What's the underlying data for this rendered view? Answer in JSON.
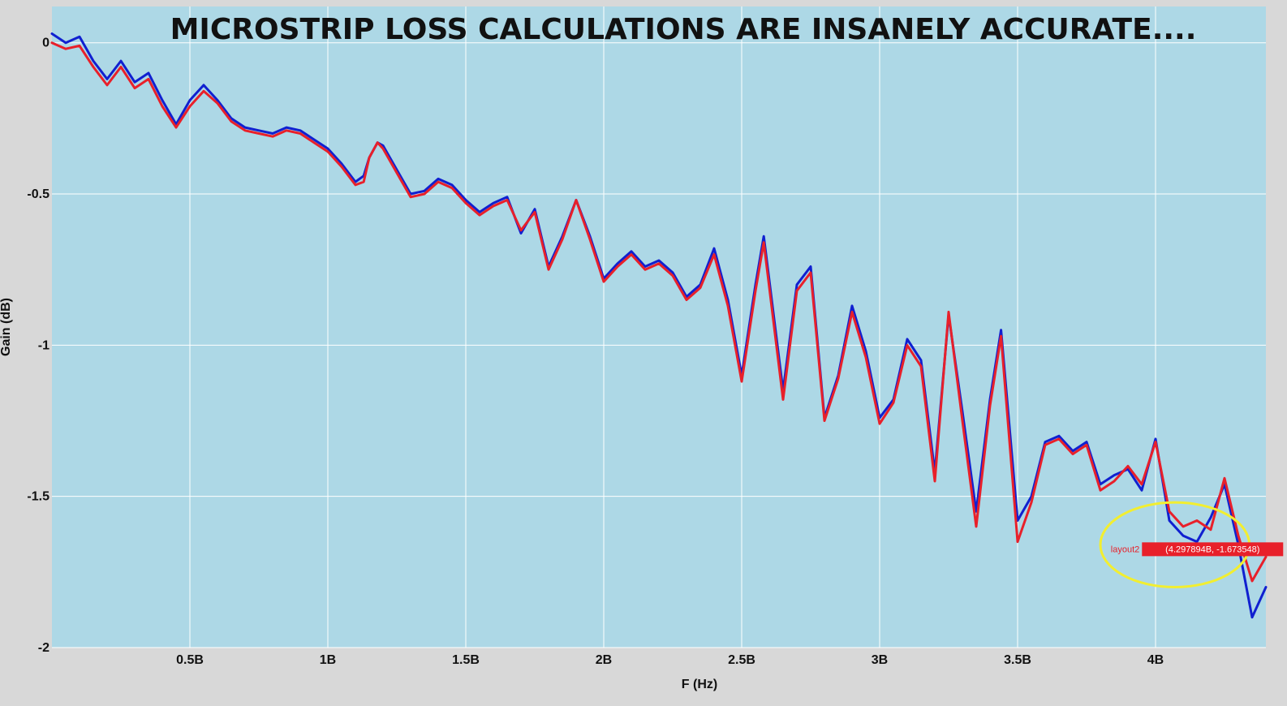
{
  "chart_data": {
    "type": "line",
    "title": "MICROSTRIP LOSS CALCULATIONS ARE INSANELY ACCURATE....",
    "xlabel": "F (Hz)",
    "ylabel": "Gain (dB)",
    "xlim": [
      0,
      4400000000
    ],
    "ylim": [
      -2,
      0.12
    ],
    "x_ticks": [
      {
        "value": 500000000,
        "label": "0.5B"
      },
      {
        "value": 1000000000,
        "label": "1B"
      },
      {
        "value": 1500000000,
        "label": "1.5B"
      },
      {
        "value": 2000000000,
        "label": "2B"
      },
      {
        "value": 2500000000,
        "label": "2.5B"
      },
      {
        "value": 3000000000,
        "label": "3B"
      },
      {
        "value": 3500000000,
        "label": "3.5B"
      },
      {
        "value": 4000000000,
        "label": "4B"
      }
    ],
    "y_ticks": [
      {
        "value": 0,
        "label": "0"
      },
      {
        "value": -0.5,
        "label": "-0.5"
      },
      {
        "value": -1,
        "label": "-1"
      },
      {
        "value": -1.5,
        "label": "-1.5"
      },
      {
        "value": -2,
        "label": "-2"
      }
    ],
    "grid": true,
    "series": [
      {
        "color": "#1020d0",
        "x": [
          0,
          50000000,
          100000000,
          150000000,
          200000000,
          250000000,
          300000000,
          350000000,
          400000000,
          450000000,
          500000000,
          550000000,
          600000000,
          650000000,
          700000000,
          750000000,
          800000000,
          850000000,
          900000000,
          950000000,
          1000000000,
          1050000000,
          1100000000,
          1130000000,
          1150000000,
          1180000000,
          1200000000,
          1250000000,
          1300000000,
          1350000000,
          1400000000,
          1450000000,
          1500000000,
          1550000000,
          1600000000,
          1650000000,
          1700000000,
          1750000000,
          1800000000,
          1850000000,
          1900000000,
          1950000000,
          2000000000,
          2050000000,
          2100000000,
          2150000000,
          2200000000,
          2250000000,
          2300000000,
          2350000000,
          2400000000,
          2450000000,
          2500000000,
          2550000000,
          2580000000,
          2650000000,
          2700000000,
          2750000000,
          2800000000,
          2850000000,
          2900000000,
          2950000000,
          3000000000,
          3050000000,
          3100000000,
          3150000000,
          3200000000,
          3250000000,
          3300000000,
          3350000000,
          3400000000,
          3440000000,
          3500000000,
          3550000000,
          3600000000,
          3650000000,
          3700000000,
          3750000000,
          3800000000,
          3850000000,
          3900000000,
          3950000000,
          4000000000,
          4050000000,
          4100000000,
          4150000000,
          4200000000,
          4250000000,
          4300000000,
          4350000000,
          4400000000
        ],
        "values": [
          0.03,
          0.0,
          0.02,
          -0.06,
          -0.12,
          -0.06,
          -0.13,
          -0.1,
          -0.19,
          -0.27,
          -0.19,
          -0.14,
          -0.19,
          -0.25,
          -0.28,
          -0.29,
          -0.3,
          -0.28,
          -0.29,
          -0.32,
          -0.35,
          -0.4,
          -0.46,
          -0.44,
          -0.38,
          -0.33,
          -0.34,
          -0.42,
          -0.5,
          -0.49,
          -0.45,
          -0.47,
          -0.52,
          -0.56,
          -0.53,
          -0.51,
          -0.63,
          -0.55,
          -0.74,
          -0.64,
          -0.52,
          -0.64,
          -0.78,
          -0.73,
          -0.69,
          -0.74,
          -0.72,
          -0.76,
          -0.84,
          -0.8,
          -0.68,
          -0.85,
          -1.1,
          -0.8,
          -0.64,
          -1.15,
          -0.8,
          -0.74,
          -1.24,
          -1.1,
          -0.87,
          -1.02,
          -1.24,
          -1.18,
          -0.98,
          -1.05,
          -1.42,
          -0.9,
          -1.22,
          -1.55,
          -1.18,
          -0.95,
          -1.58,
          -1.5,
          -1.32,
          -1.3,
          -1.35,
          -1.32,
          -1.46,
          -1.43,
          -1.41,
          -1.48,
          -1.31,
          -1.58,
          -1.63,
          -1.65,
          -1.57,
          -1.46,
          -1.66,
          -1.9,
          -1.8
        ]
      },
      {
        "color": "#e8202a",
        "x": [
          0,
          50000000,
          100000000,
          150000000,
          200000000,
          250000000,
          300000000,
          350000000,
          400000000,
          450000000,
          500000000,
          550000000,
          600000000,
          650000000,
          700000000,
          750000000,
          800000000,
          850000000,
          900000000,
          950000000,
          1000000000,
          1050000000,
          1100000000,
          1130000000,
          1150000000,
          1180000000,
          1200000000,
          1250000000,
          1300000000,
          1350000000,
          1400000000,
          1450000000,
          1500000000,
          1550000000,
          1600000000,
          1650000000,
          1700000000,
          1750000000,
          1800000000,
          1850000000,
          1900000000,
          1950000000,
          2000000000,
          2050000000,
          2100000000,
          2150000000,
          2200000000,
          2250000000,
          2300000000,
          2350000000,
          2400000000,
          2450000000,
          2500000000,
          2550000000,
          2580000000,
          2650000000,
          2700000000,
          2750000000,
          2800000000,
          2850000000,
          2900000000,
          2950000000,
          3000000000,
          3050000000,
          3100000000,
          3150000000,
          3200000000,
          3250000000,
          3300000000,
          3350000000,
          3400000000,
          3440000000,
          3500000000,
          3550000000,
          3600000000,
          3650000000,
          3700000000,
          3750000000,
          3800000000,
          3850000000,
          3900000000,
          3950000000,
          4000000000,
          4050000000,
          4100000000,
          4150000000,
          4200000000,
          4250000000,
          4300000000,
          4350000000,
          4400000000
        ],
        "values": [
          0.0,
          -0.02,
          -0.01,
          -0.08,
          -0.14,
          -0.08,
          -0.15,
          -0.12,
          -0.21,
          -0.28,
          -0.21,
          -0.16,
          -0.2,
          -0.26,
          -0.29,
          -0.3,
          -0.31,
          -0.29,
          -0.3,
          -0.33,
          -0.36,
          -0.41,
          -0.47,
          -0.46,
          -0.38,
          -0.33,
          -0.35,
          -0.43,
          -0.51,
          -0.5,
          -0.46,
          -0.48,
          -0.53,
          -0.57,
          -0.54,
          -0.52,
          -0.62,
          -0.56,
          -0.75,
          -0.65,
          -0.52,
          -0.65,
          -0.79,
          -0.74,
          -0.7,
          -0.75,
          -0.73,
          -0.77,
          -0.85,
          -0.81,
          -0.7,
          -0.87,
          -1.12,
          -0.82,
          -0.66,
          -1.18,
          -0.82,
          -0.76,
          -1.25,
          -1.11,
          -0.89,
          -1.04,
          -1.26,
          -1.19,
          -1.0,
          -1.07,
          -1.45,
          -0.89,
          -1.25,
          -1.6,
          -1.2,
          -0.97,
          -1.65,
          -1.52,
          -1.33,
          -1.31,
          -1.36,
          -1.33,
          -1.48,
          -1.45,
          -1.4,
          -1.46,
          -1.32,
          -1.55,
          -1.6,
          -1.58,
          -1.61,
          -1.44,
          -1.63,
          -1.78,
          -1.7
        ]
      }
    ],
    "tooltip": {
      "series": "layout2",
      "value": "(4.297894B, -1.673548)",
      "x": 4297894000,
      "y": -1.673548
    },
    "highlight_ellipse": {
      "center_x": 4070000000,
      "center_y": -1.66,
      "radius_x": 270000000,
      "radius_y": 0.14,
      "color": "#f2ee30"
    },
    "colors": {
      "plot_background": "#add8e6",
      "page_background": "#d8d8d8",
      "grid": "#ffffff"
    }
  }
}
